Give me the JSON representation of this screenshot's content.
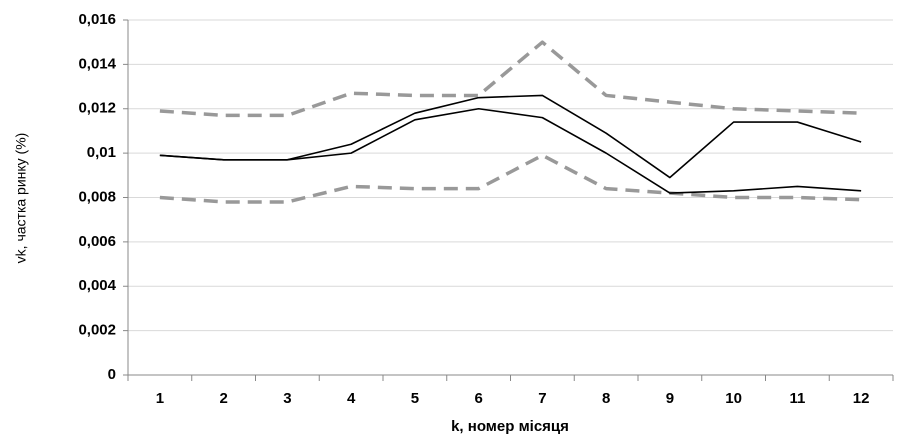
{
  "chart_data": {
    "type": "line",
    "y_label": "vk, частка ринку (%)",
    "x_label": "k, номер місяця",
    "categories": [
      "1",
      "2",
      "3",
      "4",
      "5",
      "6",
      "7",
      "8",
      "9",
      "10",
      "11",
      "12"
    ],
    "series": [
      {
        "color": "#999999",
        "style": "dashed",
        "values": [
          0.0119,
          0.0117,
          0.0117,
          0.0127,
          0.0126,
          0.0126,
          0.015,
          0.0126,
          0.0123,
          0.012,
          0.0119,
          0.0118
        ]
      },
      {
        "color": "#999999",
        "style": "dashed",
        "values": [
          0.008,
          0.0078,
          0.0078,
          0.0085,
          0.0084,
          0.0084,
          0.0099,
          0.0084,
          0.0082,
          0.008,
          0.008,
          0.0079
        ]
      },
      {
        "color": "#000000",
        "style": "solid",
        "values": [
          0.0099,
          0.0097,
          0.0097,
          0.0104,
          0.0118,
          0.0125,
          0.0126,
          0.0109,
          0.0089,
          0.0114,
          0.0114,
          0.0105
        ]
      },
      {
        "color": "#000000",
        "style": "solid",
        "values": [
          0.0099,
          0.0097,
          0.0097,
          0.01,
          0.0115,
          0.012,
          0.0116,
          0.01,
          0.0082,
          0.0083,
          0.0085,
          0.0083
        ]
      }
    ],
    "ylim": [
      0,
      0.016
    ],
    "yticks": [
      0,
      {
        "value": 0.002,
        "label": "0,002"
      },
      {
        "value": 0.004,
        "label": "0,004"
      },
      {
        "value": 0.006,
        "label": "0,006"
      },
      {
        "value": 0.008,
        "label": "0,008"
      },
      {
        "value": 0.01,
        "label": "0,01"
      },
      {
        "value": 0.012,
        "label": "0,012"
      },
      {
        "value": 0.014,
        "label": "0,014"
      },
      {
        "value": 0.016,
        "label": "0,016"
      }
    ],
    "grid": true
  }
}
